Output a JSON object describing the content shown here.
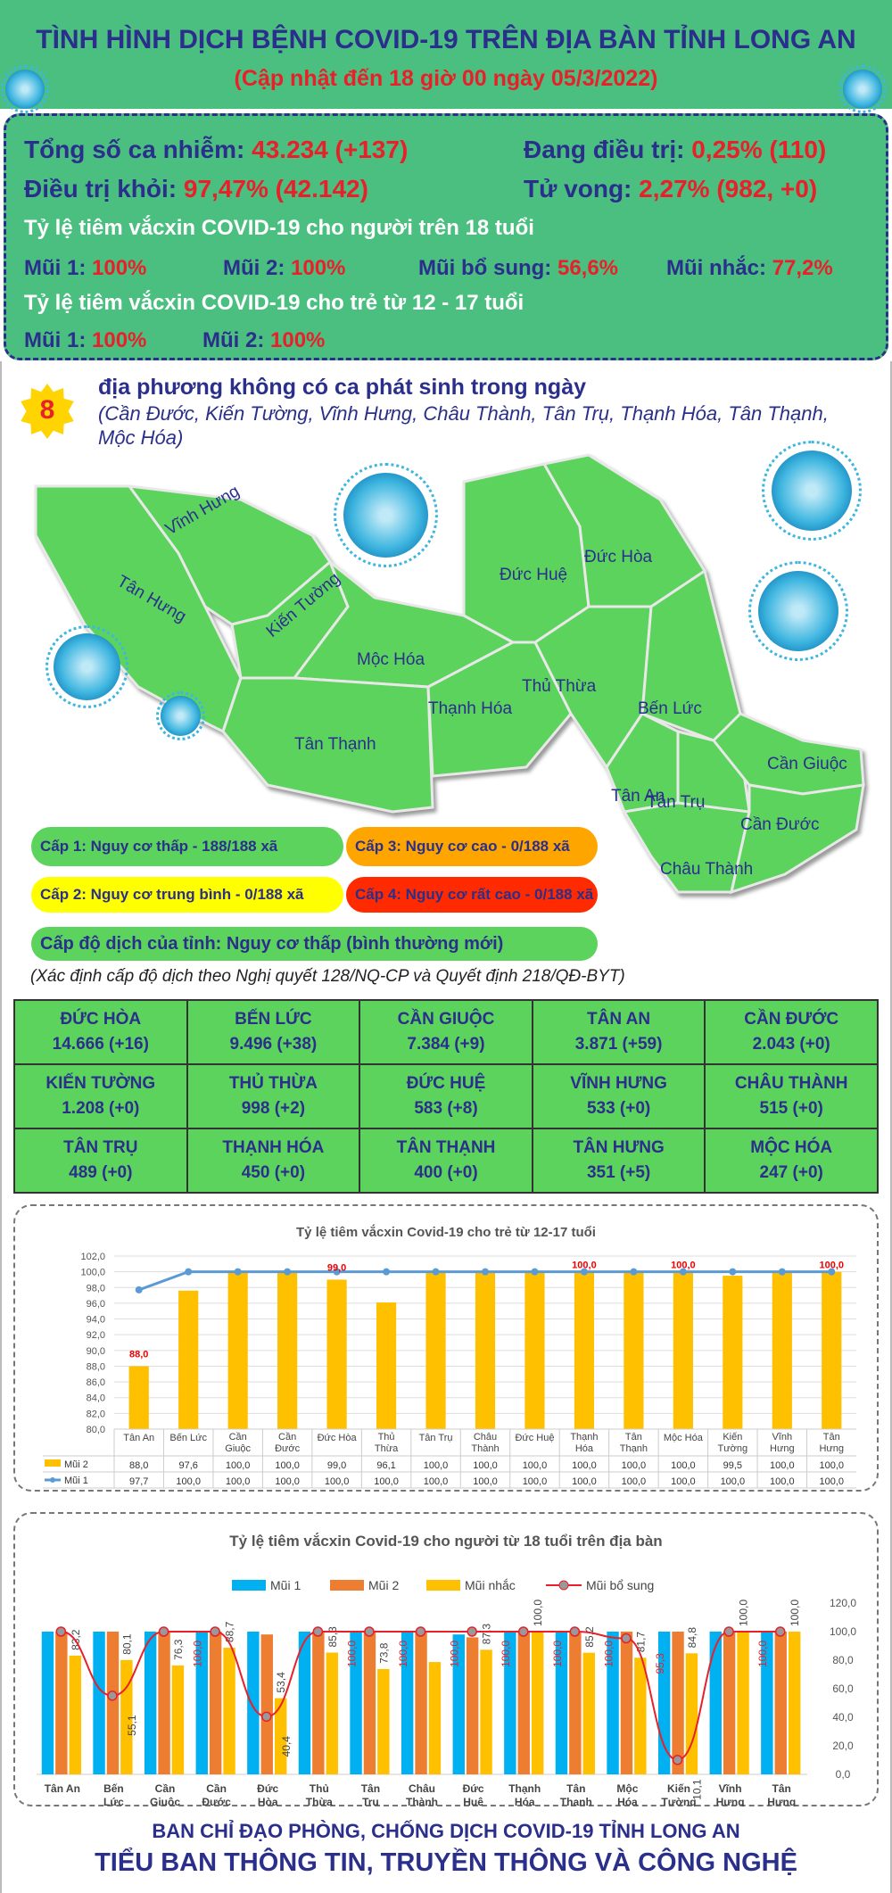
{
  "header": {
    "title": "TÌNH HÌNH DỊCH BỆNH COVID-19 TRÊN ĐỊA BÀN TỈNH LONG AN",
    "subtitle": "(Cập nhật đến 18 giờ 00 ngày 05/3/2022)"
  },
  "stats": {
    "total_label": "Tổng số ca nhiễm:",
    "total_value": "43.234 (+137)",
    "treating_label": "Đang điều trị:",
    "treating_value": "0,25% (110)",
    "recovered_label": "Điều trị khỏi:",
    "recovered_value": "97,47% (42.142)",
    "death_label": "Tử vong:",
    "death_value": "2,27% (982, +0)",
    "adult_heading": "Tỷ lệ tiêm vắcxin COVID-19 cho người trên 18 tuổi",
    "adult": [
      {
        "label": "Mũi 1:",
        "value": "100%"
      },
      {
        "label": "Mũi 2:",
        "value": "100%"
      },
      {
        "label": "Mũi bổ sung:",
        "value": "56,6%"
      },
      {
        "label": "Mũi nhắc:",
        "value": "77,2%"
      }
    ],
    "child_heading": "Tỷ lệ tiêm vắcxin COVID-19 cho trẻ từ 12 - 17 tuổi",
    "child": [
      {
        "label": "Mũi 1:",
        "value": "100%"
      },
      {
        "label": "Mũi 2:",
        "value": "100%"
      }
    ]
  },
  "localities": {
    "count": "8",
    "heading": "địa phương không có ca phát sinh trong ngày",
    "list": "(Cần Đước, Kiến Tường, Vĩnh Hưng, Châu Thành, Tân Trụ, Thạnh Hóa, Tân Thạnh, Mộc Hóa)"
  },
  "map": {
    "labels": [
      "Vĩnh Hưng",
      "Tân Hưng",
      "Kiến Tường",
      "Mộc Hóa",
      "Tân Thạnh",
      "Thạnh Hóa",
      "Đức Huệ",
      "Đức Hòa",
      "Thủ Thừa",
      "Bến Lức",
      "Tân An",
      "Tân Trụ",
      "Cần Giuộc",
      "Cần Đước",
      "Châu Thành"
    ]
  },
  "levels": [
    {
      "text": "Cấp 1: Nguy cơ thấp - 188/188 xã",
      "color": "#5cd35c"
    },
    {
      "text": "Cấp 3: Nguy cơ cao - 0/188 xã",
      "color": "#ffa500"
    },
    {
      "text": "Cấp 2: Nguy cơ trung bình - 0/188 xã",
      "color": "#ffff00"
    },
    {
      "text": "Cấp 4: Nguy cơ rất cao - 0/188 xã",
      "color": "#ff2a00"
    }
  ],
  "province_level": "Cấp độ dịch của tỉnh: Nguy cơ thấp (bình thường mới)",
  "note": "(Xác định cấp độ dịch theo Nghị quyết 128/NQ-CP và Quyết định 218/QĐ-BYT)",
  "districts": [
    {
      "name": "ĐỨC HÒA",
      "value": "14.666 (+16)"
    },
    {
      "name": "BẾN LỨC",
      "value": "9.496 (+38)"
    },
    {
      "name": "CẦN GIUỘC",
      "value": "7.384 (+9)"
    },
    {
      "name": "TÂN AN",
      "value": "3.871 (+59)"
    },
    {
      "name": "CẦN ĐƯỚC",
      "value": "2.043 (+0)"
    },
    {
      "name": "KIẾN TƯỜNG",
      "value": "1.208 (+0)"
    },
    {
      "name": "THỦ THỪA",
      "value": "998 (+2)"
    },
    {
      "name": "ĐỨC HUỆ",
      "value": "583 (+8)"
    },
    {
      "name": "VĨNH HƯNG",
      "value": "533 (+0)"
    },
    {
      "name": "CHÂU THÀNH",
      "value": "515 (+0)"
    },
    {
      "name": "TÂN TRỤ",
      "value": "489 (+0)"
    },
    {
      "name": "THẠNH HÓA",
      "value": "450 (+0)"
    },
    {
      "name": "TÂN THẠNH",
      "value": "400 (+0)"
    },
    {
      "name": "TÂN HƯNG",
      "value": "351 (+5)"
    },
    {
      "name": "MỘC HÓA",
      "value": "247 (+0)"
    }
  ],
  "chart_data": [
    {
      "type": "bar",
      "title": "Tỷ lệ tiêm vắcxin Covid-19 cho trẻ từ 12-17 tuổi",
      "categories": [
        "Tân An",
        "Bến Lức",
        "Cần Giuộc",
        "Cần Đước",
        "Đức Hòa",
        "Thủ Thừa",
        "Tân Trụ",
        "Châu Thành",
        "Đức Huệ",
        "Thạnh Hóa",
        "Tân Thạnh",
        "Mộc Hóa",
        "Kiến Tường",
        "Vĩnh Hưng",
        "Tân Hưng"
      ],
      "series": [
        {
          "name": "Mũi 2",
          "type": "bar",
          "color": "#ffc000",
          "values": [
            88.0,
            97.6,
            100.0,
            100.0,
            99.0,
            96.1,
            100.0,
            100.0,
            100.0,
            100.0,
            100.0,
            100.0,
            99.5,
            100.0,
            100.0
          ],
          "labels": [
            "88,0",
            "97,6",
            "100,0",
            "100,0",
            "99,0",
            "96,1",
            "100,0",
            "100,0",
            "100,0",
            "100,0",
            "100,0",
            "100,0",
            "99,5",
            "100,0",
            "100,0"
          ]
        },
        {
          "name": "Mũi 1",
          "type": "line",
          "color": "#5b9bd5",
          "values": [
            97.7,
            100.0,
            100.0,
            100.0,
            100.0,
            100.0,
            100.0,
            100.0,
            100.0,
            100.0,
            100.0,
            100.0,
            100.0,
            100.0,
            100.0
          ],
          "labels": [
            "97,7",
            "100,0",
            "100,0",
            "100,0",
            "100,0",
            "100,0",
            "100,0",
            "100,0",
            "100,0",
            "100,0",
            "100,0",
            "100,0",
            "100,0",
            "100,0",
            "100,0"
          ]
        }
      ],
      "data_labels": [
        {
          "index": 0,
          "text": "88,0"
        },
        {
          "index": 4,
          "text": "99,0"
        },
        {
          "index": 9,
          "text": "100,0"
        },
        {
          "index": 11,
          "text": "100,0"
        },
        {
          "index": 14,
          "text": "100,0"
        }
      ],
      "yticks": [
        "80,0",
        "82,0",
        "84,0",
        "86,0",
        "88,0",
        "90,0",
        "92,0",
        "94,0",
        "96,0",
        "98,0",
        "100,0",
        "102,0"
      ],
      "ylim": [
        80,
        102
      ],
      "grid": true,
      "legend": "table-bottom"
    },
    {
      "type": "bar",
      "title": "Tỷ lệ tiêm vắcxin Covid-19 cho người từ 18 tuổi trên địa bàn",
      "categories": [
        "Tân An",
        "Bến Lức",
        "Cần Giuộc",
        "Cần Đước",
        "Đức Hòa",
        "Thủ Thừa",
        "Tân Trụ",
        "Châu Thành",
        "Đức Huệ",
        "Thạnh Hóa",
        "Tân Thạnh",
        "Mộc Hóa",
        "Kiến Tường",
        "Vĩnh Hưng",
        "Tân Hưng"
      ],
      "series": [
        {
          "name": "Mũi 1",
          "type": "bar",
          "color": "#00b0f0",
          "values": [
            100,
            100,
            100,
            100,
            100,
            100,
            100,
            100,
            98,
            100,
            100,
            100,
            100,
            100,
            100
          ]
        },
        {
          "name": "Mũi 2",
          "type": "bar",
          "color": "#ed7d31",
          "values": [
            100,
            100,
            100,
            100,
            98,
            100,
            100,
            100,
            96,
            100,
            100,
            100,
            100,
            100,
            100
          ]
        },
        {
          "name": "Mũi nhắc",
          "type": "bar",
          "color": "#ffc000",
          "values": [
            83.2,
            80.1,
            76.3,
            88.7,
            53.4,
            85.3,
            73.8,
            78.7,
            87.3,
            100.0,
            85.2,
            81.7,
            84.8,
            100.0,
            100.0
          ],
          "labels": [
            "83,2",
            "80,1",
            "76,3",
            "88,7",
            "53,4",
            "85,3",
            "73,8",
            "",
            "87,3",
            "100,0",
            "85,2",
            "81,7",
            "84,8",
            "100,0",
            "100,0"
          ]
        },
        {
          "name": "Mũi bổ sung",
          "type": "line",
          "color": "#e8202a",
          "values": [
            100,
            55.1,
            100,
            100,
            40.4,
            100,
            100,
            100,
            100,
            100,
            100,
            95.3,
            10.1,
            100,
            100
          ],
          "labels": [
            "",
            "55,1",
            "100,0",
            "",
            "40,4",
            "100,0",
            "100,0",
            "100,0",
            "100,0",
            "100,0",
            "100,0",
            "95,3",
            "10,1",
            "100,0",
            ""
          ]
        }
      ],
      "yticks": [
        "0,0",
        "20,0",
        "40,0",
        "60,0",
        "80,0",
        "100,0",
        "120,0"
      ],
      "ylim": [
        0,
        120
      ],
      "y_axis_side": "right",
      "legend": "top"
    }
  ],
  "footer": {
    "line1": "BAN CHỈ ĐẠO PHÒNG, CHỐNG DỊCH COVID-19 TỈNH LONG AN",
    "line2": "TIỂU BAN THÔNG TIN, TRUYỀN THÔNG VÀ CÔNG NGHỆ"
  }
}
